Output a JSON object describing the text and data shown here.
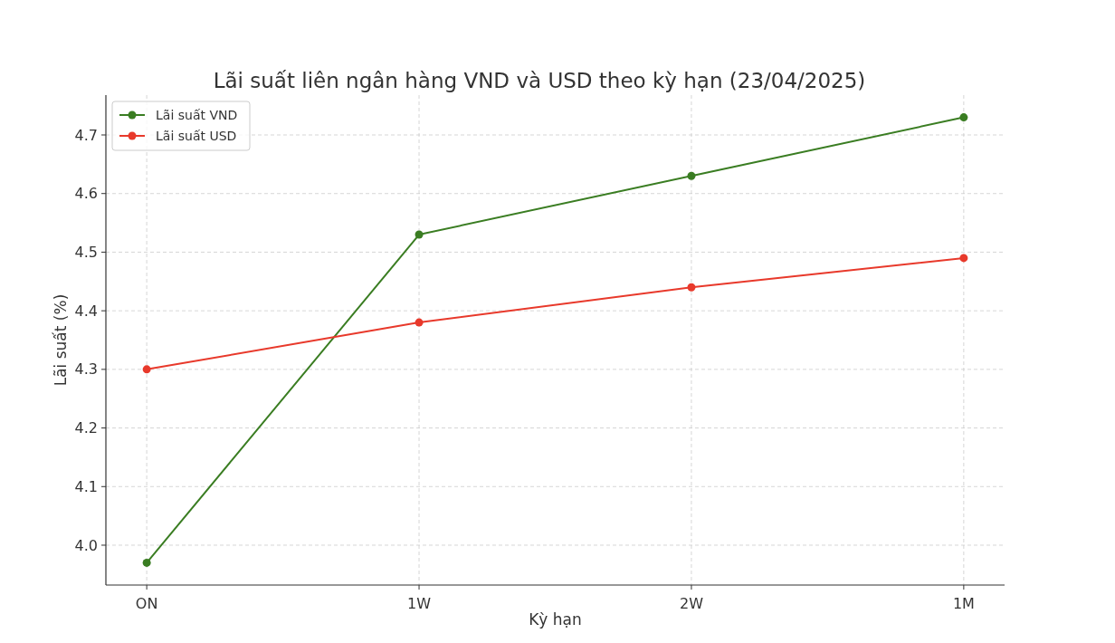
{
  "chart_data": {
    "type": "line",
    "title": "Lãi suất liên ngân hàng VND và USD theo kỳ hạn (23/04/2025)",
    "xlabel": "Kỳ hạn",
    "ylabel": "Lãi suất (%)",
    "categories": [
      "ON",
      "1W",
      "2W",
      "1M"
    ],
    "series": [
      {
        "name": "Lãi suất VND",
        "color": "#3a7d22",
        "values": [
          3.97,
          4.53,
          4.63,
          4.73
        ]
      },
      {
        "name": "Lãi suất USD",
        "color": "#e8392b",
        "values": [
          4.3,
          4.38,
          4.44,
          4.49
        ]
      }
    ],
    "ylim": [
      3.932,
      4.768
    ],
    "yticks": [
      {
        "value": 4.0,
        "label": "4.0"
      },
      {
        "value": 4.1,
        "label": "4.1"
      },
      {
        "value": 4.2,
        "label": "4.2"
      },
      {
        "value": 4.3,
        "label": "4.3"
      },
      {
        "value": 4.4,
        "label": "4.4"
      },
      {
        "value": 4.5,
        "label": "4.5"
      },
      {
        "value": 4.6,
        "label": "4.6"
      },
      {
        "value": 4.7,
        "label": "4.7"
      }
    ],
    "grid": true,
    "legend": "top left",
    "marker": "circle",
    "line_style": "solid"
  }
}
